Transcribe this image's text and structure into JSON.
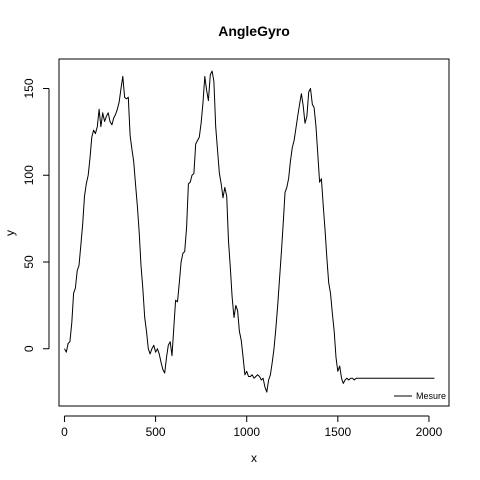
{
  "chart_data": {
    "type": "line",
    "title": "AngleGyro",
    "xlabel": "x",
    "ylabel": "y",
    "xlim": [
      -30,
      2110
    ],
    "ylim": [
      -33,
      167
    ],
    "xticks": [
      0,
      500,
      1000,
      1500,
      2000
    ],
    "yticks": [
      0,
      50,
      100,
      150
    ],
    "grid": false,
    "legend": {
      "position": "bottom-right"
    },
    "series": [
      {
        "name": "Mesure",
        "color": "#000000",
        "x": [
          0,
          10,
          20,
          30,
          40,
          50,
          60,
          70,
          80,
          90,
          100,
          110,
          120,
          130,
          140,
          150,
          160,
          170,
          180,
          190,
          200,
          210,
          220,
          230,
          240,
          250,
          260,
          270,
          280,
          290,
          300,
          310,
          320,
          330,
          340,
          350,
          360,
          370,
          380,
          390,
          400,
          410,
          420,
          430,
          440,
          450,
          460,
          470,
          480,
          490,
          500,
          510,
          520,
          530,
          540,
          550,
          560,
          570,
          580,
          590,
          600,
          610,
          620,
          630,
          640,
          650,
          660,
          670,
          680,
          690,
          700,
          710,
          720,
          730,
          740,
          750,
          760,
          770,
          780,
          790,
          800,
          810,
          820,
          830,
          840,
          850,
          860,
          870,
          880,
          890,
          900,
          910,
          920,
          930,
          940,
          950,
          960,
          970,
          980,
          990,
          1000,
          1010,
          1020,
          1030,
          1040,
          1050,
          1060,
          1070,
          1080,
          1090,
          1100,
          1110,
          1120,
          1130,
          1140,
          1150,
          1160,
          1170,
          1180,
          1190,
          1200,
          1210,
          1220,
          1230,
          1240,
          1250,
          1260,
          1270,
          1280,
          1290,
          1300,
          1310,
          1320,
          1330,
          1340,
          1350,
          1360,
          1370,
          1380,
          1390,
          1400,
          1410,
          1420,
          1430,
          1440,
          1450,
          1460,
          1470,
          1480,
          1490,
          1500,
          1510,
          1520,
          1530,
          1540,
          1550,
          1560,
          1570,
          1580,
          1590,
          1600,
          1610,
          1620,
          1630,
          1640,
          1650,
          1660,
          1670,
          1680,
          1690,
          1700,
          1710,
          1720,
          1730,
          1740,
          1750,
          1760,
          1770,
          1780,
          1790,
          1800,
          1810,
          1820,
          1830,
          1840,
          1850,
          1860,
          1870,
          1880,
          1890,
          1900,
          1910,
          1920,
          1930,
          1940,
          1950,
          1960,
          1970,
          1980,
          1990,
          2000,
          2010,
          2020,
          2030
        ],
        "y": [
          0,
          -2,
          3,
          4,
          15,
          32,
          35,
          45,
          48,
          60,
          72,
          88,
          95,
          100,
          110,
          122,
          126,
          124,
          128,
          138,
          128,
          136,
          131,
          134,
          136,
          131,
          129,
          133,
          135,
          138,
          142,
          150,
          157,
          145,
          144,
          145,
          123,
          115,
          108,
          95,
          82,
          67,
          48,
          35,
          18,
          10,
          0,
          -3,
          0,
          2,
          -2,
          0,
          -3,
          -8,
          -12,
          -14,
          -5,
          2,
          4,
          -4,
          12,
          28,
          27,
          38,
          50,
          55,
          56,
          70,
          95,
          96,
          100,
          101,
          118,
          120,
          122,
          130,
          142,
          157,
          149,
          143,
          158,
          160,
          154,
          128,
          114,
          101,
          95,
          87,
          93,
          88,
          62,
          47,
          30,
          18,
          25,
          22,
          10,
          5,
          -5,
          -15,
          -13,
          -16,
          -16,
          -15,
          -17,
          -16,
          -15,
          -16,
          -18,
          -17,
          -22,
          -25,
          -18,
          -15,
          -8,
          0,
          12,
          25,
          40,
          55,
          72,
          90,
          93,
          98,
          108,
          116,
          120,
          127,
          134,
          141,
          147,
          140,
          130,
          134,
          148,
          150,
          141,
          139,
          128,
          112,
          96,
          98,
          82,
          68,
          52,
          38,
          32,
          20,
          10,
          -5,
          -13,
          -10,
          -17,
          -20,
          -18,
          -17,
          -18,
          -17,
          -17,
          -18,
          -17,
          -17,
          -17,
          -17,
          -17,
          -17,
          -17,
          -17,
          -17,
          -17,
          -17,
          -17,
          -17,
          -17,
          -17,
          -17,
          -17,
          -17,
          -17,
          -17,
          -17,
          -17,
          -17,
          -17,
          -17,
          -17,
          -17,
          -17,
          -17,
          -17,
          -17,
          -17,
          -17,
          -17,
          -17,
          -17,
          -17,
          -17,
          -17,
          -17,
          -17,
          -17,
          -17,
          -17
        ]
      }
    ]
  }
}
